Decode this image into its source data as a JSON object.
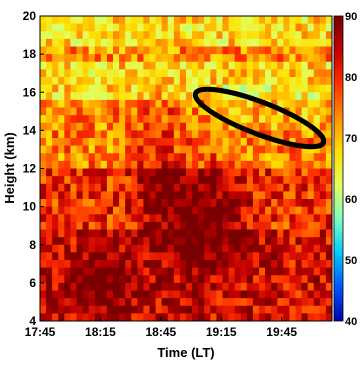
{
  "chart_data": {
    "type": "heatmap",
    "title": "",
    "xlabel": "Time (LT)",
    "ylabel": "Height (km)",
    "x_ticks": [
      "17:45",
      "18:15",
      "18:45",
      "19:15",
      "19:45"
    ],
    "x_range": [
      "17:45",
      "20:10"
    ],
    "y_ticks": [
      4,
      6,
      8,
      10,
      12,
      14,
      16,
      18,
      20
    ],
    "ylim": [
      4,
      20
    ],
    "colorbar": {
      "ticks": [
        40,
        50,
        60,
        70,
        80,
        90
      ],
      "range": [
        40,
        90
      ],
      "colors": [
        "#0000aa",
        "#0055ff",
        "#00c8ff",
        "#80ffc0",
        "#e0ff60",
        "#ffe000",
        "#ff9000",
        "#ff3000",
        "#c00000",
        "#780000"
      ]
    },
    "annotation": {
      "shape": "ellipse",
      "color": "#000000",
      "time_range": [
        "19:00",
        "20:08"
      ],
      "height_range": [
        12.8,
        16.5
      ]
    },
    "grid": false
  }
}
